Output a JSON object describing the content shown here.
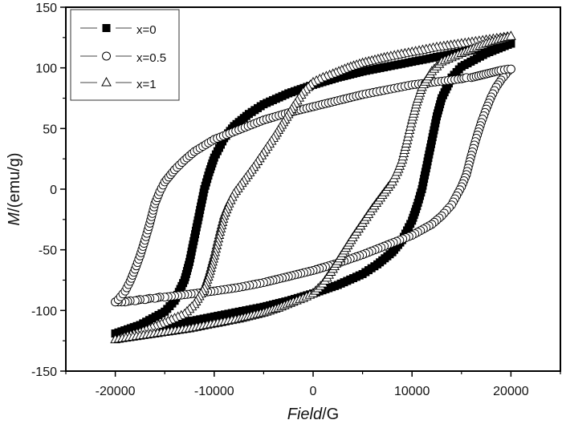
{
  "chart_data": {
    "type": "scatter",
    "title": "",
    "xlabel_italic": "Field",
    "xlabel_unit": "/G",
    "ylabel_italic": "M",
    "ylabel_unit": "/(emu/g)",
    "xlim": [
      -25000,
      25000
    ],
    "ylim": [
      -150,
      150
    ],
    "xticks": [
      -20000,
      -10000,
      0,
      10000,
      20000
    ],
    "xminor": [
      -25000,
      -15000,
      -5000,
      5000,
      15000,
      25000
    ],
    "yticks": [
      -150,
      -100,
      -50,
      0,
      50,
      100,
      150
    ],
    "yminor": [
      -125,
      -75,
      -25,
      25,
      75,
      125
    ],
    "grid": false,
    "legend_position": "upper-left",
    "series": [
      {
        "name": "x=0",
        "marker": "filled-square",
        "color": "#000000",
        "descending": {
          "x": [
            20000,
            17500,
            15000,
            12500,
            10000,
            7500,
            5000,
            2500,
            0,
            -2500,
            -5000,
            -6500,
            -8000,
            -9000,
            -10000,
            -10500,
            -11000,
            -11500,
            -12000,
            -12500,
            -13000,
            -14000,
            -15000,
            -17500,
            -20000
          ],
          "y": [
            120,
            117,
            113,
            109,
            105,
            101,
            97,
            92,
            86,
            79,
            70,
            62,
            52,
            42,
            26,
            14,
            0,
            -20,
            -40,
            -60,
            -75,
            -92,
            -101,
            -112,
            -119
          ]
        },
        "ascending": {
          "x": [
            -20000,
            -17500,
            -15000,
            -12500,
            -10000,
            -7500,
            -5000,
            -2500,
            0,
            2500,
            5000,
            6500,
            8000,
            9000,
            10000,
            10500,
            11000,
            11500,
            12000,
            12500,
            13000,
            14000,
            15000,
            17500,
            20000
          ],
          "y": [
            -119,
            -117,
            -113,
            -109,
            -105,
            -101,
            -97,
            -92,
            -86,
            -79,
            -70,
            -62,
            -52,
            -42,
            -26,
            -14,
            0,
            20,
            40,
            60,
            75,
            92,
            101,
            112,
            120
          ]
        }
      },
      {
        "name": "x=0.5",
        "marker": "open-circle",
        "color": "#000000",
        "descending": {
          "x": [
            20000,
            19700,
            19000,
            18500,
            18000,
            17500,
            17000,
            16500,
            16000,
            15500,
            15000,
            14000,
            13000,
            12000,
            10000,
            7500,
            5000,
            2500,
            0,
            -2500,
            -5000,
            -7500,
            -10000,
            -12000,
            -13000,
            -14000,
            -15000,
            -15500,
            -16000,
            -16500,
            -17000,
            -17500,
            -18000,
            -18500,
            -19000,
            -19700,
            -20000
          ],
          "y": [
            99,
            97,
            90,
            84,
            76,
            66,
            55,
            42,
            28,
            12,
            2,
            -13,
            -22,
            -29,
            -38,
            -46,
            -54,
            -61,
            -67,
            -72,
            -77,
            -81,
            -84,
            -86,
            -87,
            -88,
            -89,
            -89,
            -90,
            -90,
            -91,
            -91,
            -92,
            -92,
            -93,
            -93,
            -93
          ]
        },
        "ascending": {
          "x": [
            -20000,
            -19700,
            -19000,
            -18500,
            -18000,
            -17500,
            -17000,
            -16500,
            -16000,
            -15500,
            -15000,
            -14000,
            -13000,
            -12000,
            -10000,
            -7500,
            -5000,
            -2500,
            0,
            2500,
            5000,
            7500,
            10000,
            12000,
            13000,
            14000,
            15000,
            15500,
            16000,
            16500,
            17000,
            17500,
            18000,
            18500,
            19000,
            19700,
            20000
          ],
          "y": [
            -93,
            -91,
            -84,
            -76,
            -66,
            -55,
            -42,
            -28,
            -12,
            -2,
            6,
            16,
            24,
            31,
            41,
            49,
            57,
            63,
            68,
            73,
            78,
            82,
            86,
            88,
            89,
            90,
            91,
            92,
            92,
            93,
            94,
            95,
            96,
            97,
            98,
            99,
            99
          ]
        }
      },
      {
        "name": "x=1",
        "marker": "open-triangle",
        "color": "#000000",
        "descending": {
          "x": [
            20000,
            17500,
            15000,
            12500,
            10000,
            7500,
            5000,
            3500,
            2000,
            1000,
            0,
            -1000,
            -2000,
            -3000,
            -4000,
            -5000,
            -6000,
            -7000,
            -8000,
            -8500,
            -9000,
            -9500,
            -10000,
            -10500,
            -11000,
            -12000,
            -13000,
            -15000,
            -17500,
            -20000
          ],
          "y": [
            126,
            123,
            120,
            117,
            113,
            109,
            104,
            100,
            95,
            92,
            88,
            80,
            68,
            55,
            42,
            30,
            18,
            7,
            -4,
            -12,
            -22,
            -38,
            -55,
            -70,
            -82,
            -95,
            -103,
            -110,
            -118,
            -124
          ]
        },
        "ascending": {
          "x": [
            -20000,
            -17500,
            -15000,
            -12500,
            -10000,
            -7500,
            -5000,
            -3500,
            -2000,
            -1000,
            0,
            1000,
            2000,
            3000,
            4000,
            5000,
            6000,
            7000,
            8000,
            8500,
            9000,
            9500,
            10000,
            10500,
            11000,
            12000,
            13000,
            15000,
            17500,
            20000
          ],
          "y": [
            -124,
            -121,
            -118,
            -115,
            -111,
            -107,
            -102,
            -98,
            -93,
            -90,
            -86,
            -78,
            -66,
            -53,
            -40,
            -28,
            -16,
            -5,
            6,
            14,
            24,
            40,
            57,
            72,
            84,
            97,
            105,
            112,
            120,
            126
          ]
        }
      }
    ]
  },
  "legend": {
    "items": [
      {
        "label": "x=0"
      },
      {
        "label": "x=0.5"
      },
      {
        "label": "x=1"
      }
    ]
  },
  "axes": {
    "xlabel_italic": "Field",
    "xlabel_unit": "/G",
    "ylabel_italic": "M",
    "ylabel_unit": "/(emu/g)"
  }
}
